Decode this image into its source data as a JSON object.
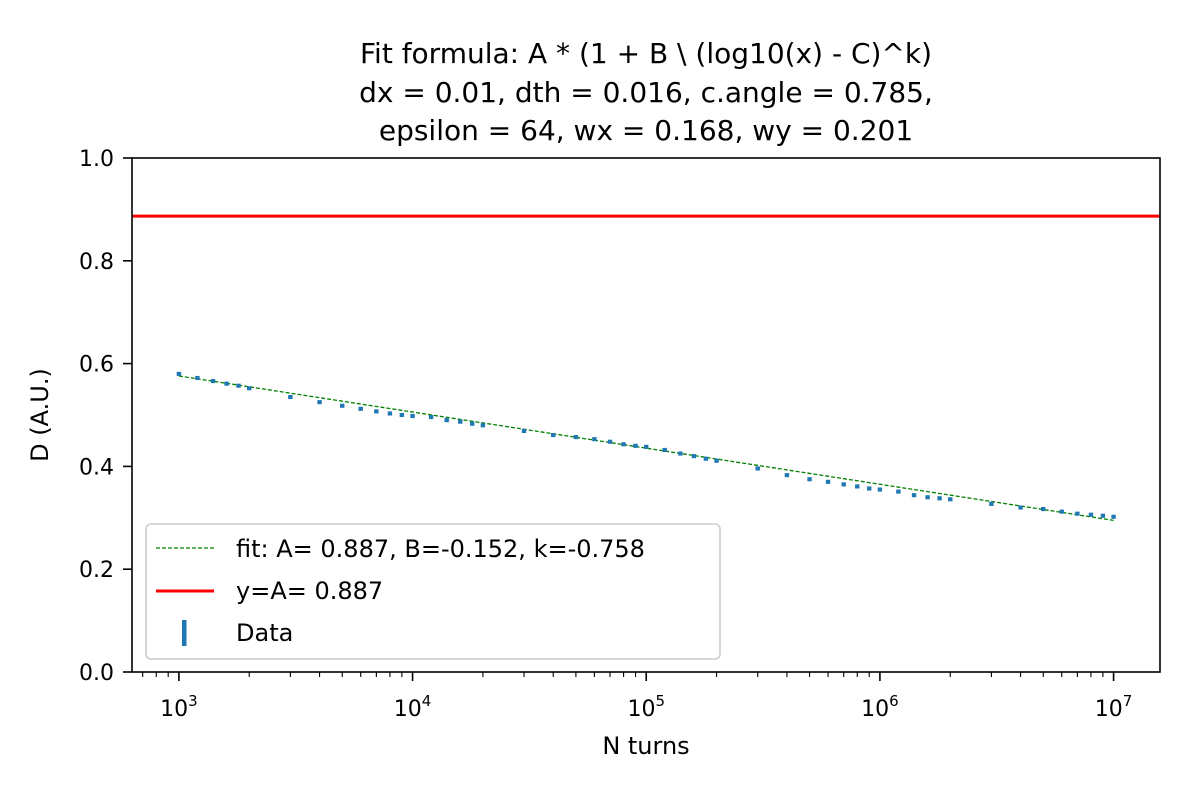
{
  "chart_data": {
    "type": "scatter",
    "title_lines": [
      "Fit formula: A * (1 + B \\ (log10(x) - C)^k)",
      "dx = 0.01, dth = 0.016, c.angle = 0.785,",
      "epsilon = 64, wx = 0.168, wy = 0.201"
    ],
    "xlabel": "N turns",
    "ylabel": "D (A.U.)",
    "xscale": "log",
    "xlim": [
      630,
      15800000
    ],
    "ylim": [
      0.0,
      1.0
    ],
    "x_ticks": [
      {
        "base": "10",
        "exp": "3",
        "value": 1000
      },
      {
        "base": "10",
        "exp": "4",
        "value": 10000
      },
      {
        "base": "10",
        "exp": "5",
        "value": 100000
      },
      {
        "base": "10",
        "exp": "6",
        "value": 1000000
      },
      {
        "base": "10",
        "exp": "7",
        "value": 10000000
      }
    ],
    "y_ticks": [
      {
        "label": "0.0",
        "value": 0.0
      },
      {
        "label": "0.2",
        "value": 0.2
      },
      {
        "label": "0.4",
        "value": 0.4
      },
      {
        "label": "0.6",
        "value": 0.6
      },
      {
        "label": "0.8",
        "value": 0.8
      },
      {
        "label": "1.0",
        "value": 1.0
      }
    ],
    "grid": false,
    "legend_position": "lower left",
    "series": [
      {
        "name": "Data",
        "kind": "errorbar",
        "color": "#1f77b4",
        "x": [
          1000,
          1200,
          1400,
          1600,
          1800,
          2000,
          3000,
          4000,
          5000,
          6000,
          7000,
          8000,
          9000,
          10000,
          12000,
          14000,
          16000,
          18000,
          20000,
          30000,
          40000,
          50000,
          60000,
          70000,
          80000,
          90000,
          100000,
          120000,
          140000,
          160000,
          180000,
          200000,
          300000,
          400000,
          500000,
          600000,
          700000,
          800000,
          900000,
          1000000,
          1200000,
          1400000,
          1600000,
          1800000,
          2000000,
          3000000,
          4000000,
          5000000,
          6000000,
          7000000,
          8000000,
          9000000,
          10000000
        ],
        "y": [
          0.58,
          0.572,
          0.566,
          0.561,
          0.557,
          0.552,
          0.535,
          0.525,
          0.518,
          0.512,
          0.507,
          0.503,
          0.5,
          0.498,
          0.496,
          0.49,
          0.487,
          0.483,
          0.48,
          0.469,
          0.461,
          0.457,
          0.453,
          0.448,
          0.443,
          0.44,
          0.438,
          0.432,
          0.425,
          0.42,
          0.415,
          0.411,
          0.396,
          0.383,
          0.375,
          0.37,
          0.365,
          0.361,
          0.357,
          0.355,
          0.351,
          0.344,
          0.34,
          0.338,
          0.336,
          0.327,
          0.32,
          0.317,
          0.312,
          0.308,
          0.306,
          0.304,
          0.302
        ],
        "err": 0.004
      },
      {
        "name": "fit: A= 0.887, B=-0.152, k=-0.758",
        "kind": "line",
        "style": "dashed",
        "color": "#008000",
        "x": [
          1000,
          10000000
        ],
        "y": [
          0.576,
          0.295
        ]
      },
      {
        "name": "y=A= 0.887",
        "kind": "hline",
        "style": "solid",
        "color": "#ff0000",
        "y": 0.887
      }
    ]
  }
}
